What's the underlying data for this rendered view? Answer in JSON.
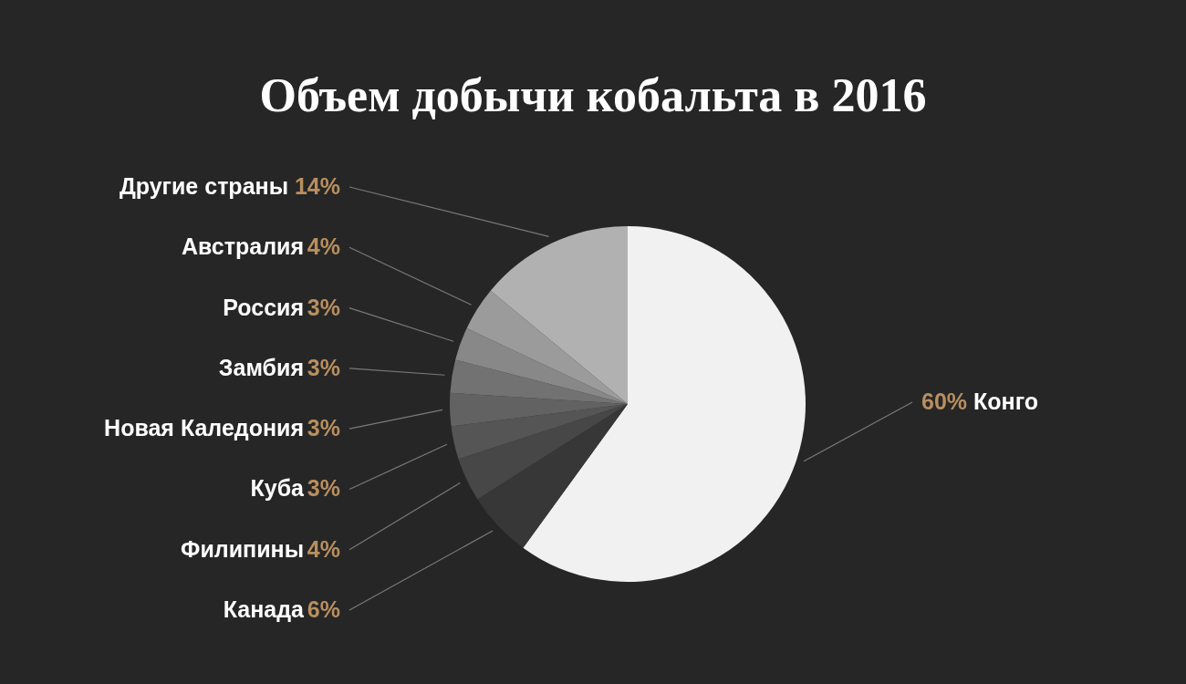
{
  "chart_data": {
    "type": "pie",
    "title": "Объем добычи кобальта в 2016",
    "categories": [
      "Конго",
      "Канада",
      "Филипины",
      "Куба",
      "Новая Каледония",
      "Замбия",
      "Россия",
      "Австралия",
      "Другие страны"
    ],
    "values": [
      60,
      6,
      4,
      3,
      3,
      3,
      3,
      4,
      14
    ],
    "value_labels": [
      "60%",
      "6%",
      "4%",
      "3%",
      "3%",
      "3%",
      "3%",
      "4%",
      "14%"
    ],
    "colors": [
      "#f1f1f1",
      "#373737",
      "#474747",
      "#555555",
      "#626262",
      "#727272",
      "#888888",
      "#9b9b9b",
      "#b1b1b1"
    ]
  }
}
